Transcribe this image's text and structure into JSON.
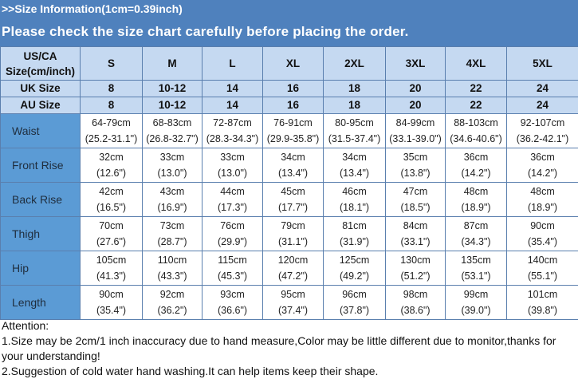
{
  "header": {
    "line1": ">>Size Information(1cm=0.39inch)",
    "line2": "Please check the size chart carefully before placing the order."
  },
  "table": {
    "corner": [
      "US/CA",
      "Size(cm/inch)"
    ],
    "sizes": [
      "S",
      "M",
      "L",
      "XL",
      "2XL",
      "3XL",
      "4XL",
      "5XL"
    ],
    "uk": {
      "label": "UK Size",
      "values": [
        "8",
        "10-12",
        "14",
        "16",
        "18",
        "20",
        "22",
        "24"
      ]
    },
    "au": {
      "label": "AU Size",
      "values": [
        "8",
        "10-12",
        "14",
        "16",
        "18",
        "20",
        "22",
        "24"
      ]
    },
    "rows": [
      {
        "label": "Waist",
        "cm": [
          "64-79cm",
          "68-83cm",
          "72-87cm",
          "76-91cm",
          "80-95cm",
          "84-99cm",
          "88-103cm",
          "92-107cm"
        ],
        "inch": [
          "(25.2-31.1\")",
          "(26.8-32.7\")",
          "(28.3-34.3\")",
          "(29.9-35.8\")",
          "(31.5-37.4\")",
          "(33.1-39.0\")",
          "(34.6-40.6\")",
          "(36.2-42.1\")"
        ]
      },
      {
        "label": "Front Rise",
        "cm": [
          "32cm",
          "33cm",
          "33cm",
          "34cm",
          "34cm",
          "35cm",
          "36cm",
          "36cm"
        ],
        "inch": [
          "(12.6\")",
          "(13.0\")",
          "(13.0\")",
          "(13.4\")",
          "(13.4\")",
          "(13.8\")",
          "(14.2\")",
          "(14.2\")"
        ]
      },
      {
        "label": "Back Rise",
        "cm": [
          "42cm",
          "43cm",
          "44cm",
          "45cm",
          "46cm",
          "47cm",
          "48cm",
          "48cm"
        ],
        "inch": [
          "(16.5\")",
          "(16.9\")",
          "(17.3\")",
          "(17.7\")",
          "(18.1\")",
          "(18.5\")",
          "(18.9\")",
          "(18.9\")"
        ]
      },
      {
        "label": "Thigh",
        "cm": [
          "70cm",
          "73cm",
          "76cm",
          "79cm",
          "81cm",
          "84cm",
          "87cm",
          "90cm"
        ],
        "inch": [
          "(27.6\")",
          "(28.7\")",
          "(29.9\")",
          "(31.1\")",
          "(31.9\")",
          "(33.1\")",
          "(34.3\")",
          "(35.4\")"
        ]
      },
      {
        "label": "Hip",
        "cm": [
          "105cm",
          "110cm",
          "115cm",
          "120cm",
          "125cm",
          "130cm",
          "135cm",
          "140cm"
        ],
        "inch": [
          "(41.3\")",
          "(43.3\")",
          "(45.3\")",
          "(47.2\")",
          "(49.2\")",
          "(51.2\")",
          "(53.1\")",
          "(55.1\")"
        ]
      },
      {
        "label": "Length",
        "cm": [
          "90cm",
          "92cm",
          "93cm",
          "95cm",
          "96cm",
          "98cm",
          "99cm",
          "101cm"
        ],
        "inch": [
          "(35.4\")",
          "(36.2\")",
          "(36.6\")",
          "(37.4\")",
          "(37.8\")",
          "(38.6\")",
          "(39.0\")",
          "(39.8\")"
        ]
      }
    ]
  },
  "attention": {
    "title": "Attention:",
    "notes": [
      "1.Size may be 2cm/1 inch inaccuracy due to hand measure,Color may be little different due to monitor,thanks for your understanding!",
      "2.Suggestion of cold water hand washing.It can help items keep their shape."
    ]
  },
  "colors": {
    "banner": "#4f81bd",
    "header_cells": "#c5d9f1",
    "label_cells": "#5b9bd5"
  }
}
